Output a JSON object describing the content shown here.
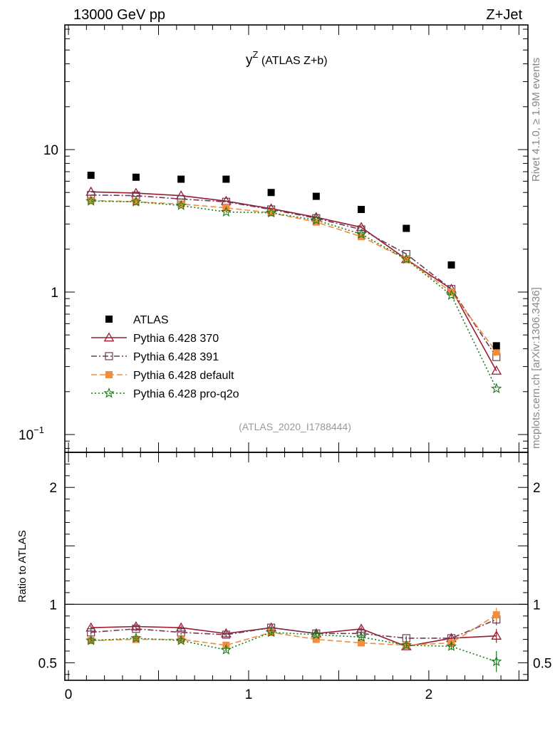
{
  "header": {
    "left": "13000 GeV pp",
    "right": "Z+Jet"
  },
  "side_labels": {
    "rivet": "Rivet 4.1.0, ≥ 1.9M events",
    "mcplots": "mcplots.cern.ch [arXiv:1306.3436]"
  },
  "chart_data": {
    "type": "scatter",
    "title_main": "y",
    "title_sup": "Z",
    "title_rest": " (ATLAS Z+b)",
    "analysis_tag": "(ATLAS_2020_I1788444)",
    "xlim": [
      -0.02,
      2.55
    ],
    "ylim": [
      0.075,
      75
    ],
    "yscale": "log",
    "ratio_ylim": [
      0.35,
      2.3
    ],
    "ratio_ylabel": "Ratio to ATLAS",
    "x_ticks": [
      "0",
      "1",
      "2"
    ],
    "x_tick_values": [
      0,
      1,
      2
    ],
    "main_y_ticks": [
      {
        "value": 10,
        "base": "10",
        "exp": ""
      },
      {
        "value": 1,
        "base": "1",
        "exp": ""
      },
      {
        "value": 0.1,
        "base": "10",
        "exp": "−1"
      }
    ],
    "ratio_y_ticks": [
      {
        "value": 2,
        "label": "2"
      },
      {
        "value": 1,
        "label": "1"
      },
      {
        "value": 0.5,
        "label": "0.5"
      }
    ],
    "x": [
      0.125,
      0.375,
      0.625,
      0.875,
      1.125,
      1.375,
      1.625,
      1.875,
      2.125,
      2.375
    ],
    "data": {
      "name": "ATLAS",
      "color": "#000000",
      "values": [
        6.6,
        6.4,
        6.2,
        6.2,
        5.0,
        4.7,
        3.8,
        2.8,
        1.55,
        0.42
      ]
    },
    "series": [
      {
        "name": "Pythia 6.428 370",
        "color": "#9b1b30",
        "marker": "triangle-open",
        "dash": "",
        "values": [
          5.05,
          4.95,
          4.75,
          4.35,
          3.85,
          3.35,
          2.85,
          1.7,
          1.05,
          0.28
        ],
        "ratio": [
          0.8,
          0.81,
          0.8,
          0.75,
          0.8,
          0.75,
          0.79,
          0.64,
          0.71,
          0.73
        ],
        "ratio_err": [
          0.02,
          0.02,
          0.02,
          0.02,
          0.02,
          0.02,
          0.02,
          0.02,
          0.03,
          0.06
        ]
      },
      {
        "name": "Pythia 6.428 391",
        "color": "#6e3b55",
        "marker": "square-open",
        "dash": "8,3,2,3",
        "values": [
          4.8,
          4.75,
          4.5,
          4.3,
          3.8,
          3.3,
          2.75,
          1.85,
          1.05,
          0.35
        ],
        "ratio": [
          0.76,
          0.79,
          0.76,
          0.74,
          0.8,
          0.75,
          0.75,
          0.71,
          0.71,
          0.87
        ],
        "ratio_err": [
          0.02,
          0.02,
          0.02,
          0.02,
          0.02,
          0.02,
          0.02,
          0.02,
          0.03,
          0.05
        ]
      },
      {
        "name": "Pythia 6.428 default",
        "color": "#f28d3c",
        "marker": "square-filled",
        "dash": "8,4",
        "values": [
          4.4,
          4.3,
          4.15,
          3.9,
          3.6,
          3.1,
          2.45,
          1.7,
          1.0,
          0.38
        ],
        "ratio": [
          0.69,
          0.7,
          0.7,
          0.65,
          0.76,
          0.7,
          0.67,
          0.65,
          0.67,
          0.91
        ],
        "ratio_err": [
          0.02,
          0.02,
          0.02,
          0.02,
          0.02,
          0.02,
          0.02,
          0.02,
          0.03,
          0.06
        ]
      },
      {
        "name": "Pythia 6.428 pro-q2o",
        "color": "#1a7a1a",
        "marker": "star",
        "dash": "2,3",
        "values": [
          4.35,
          4.3,
          4.05,
          3.65,
          3.6,
          3.2,
          2.55,
          1.7,
          0.95,
          0.21
        ],
        "ratio": [
          0.69,
          0.71,
          0.69,
          0.61,
          0.76,
          0.74,
          0.72,
          0.65,
          0.64,
          0.51
        ],
        "ratio_err": [
          0.02,
          0.02,
          0.02,
          0.02,
          0.02,
          0.02,
          0.02,
          0.02,
          0.03,
          0.09
        ]
      }
    ]
  }
}
